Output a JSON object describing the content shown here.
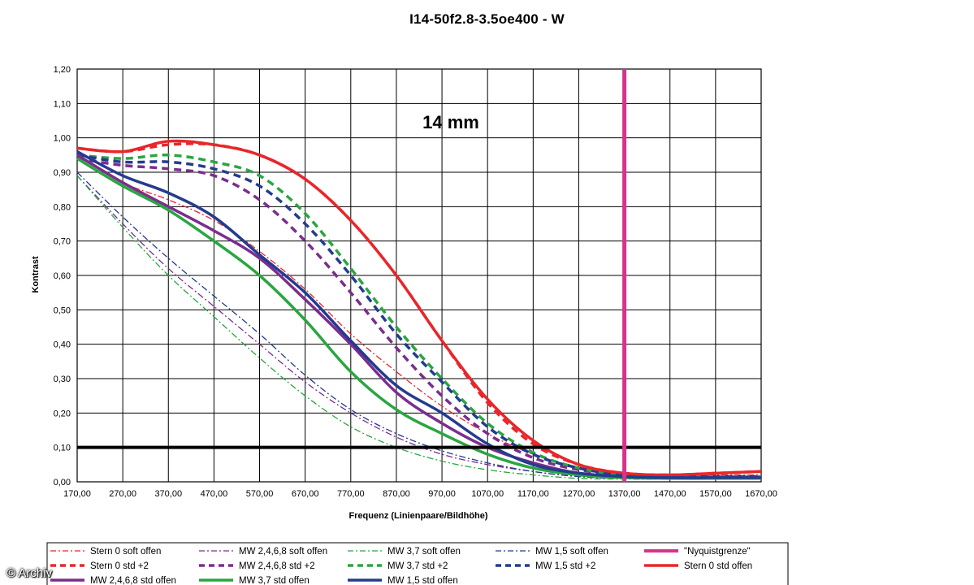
{
  "watermark": "© Archiv",
  "chart_data": {
    "type": "line",
    "title": "I14-50f2.8-3.5oe400 - W",
    "annotation": "14 mm",
    "xlabel": "Frequenz (Linienpaare/Bildhöhe)",
    "ylabel": "Kontrast",
    "xlim": [
      170,
      1670
    ],
    "ylim": [
      0,
      1.2
    ],
    "x_ticks": [
      "170,00",
      "270,00",
      "370,00",
      "470,00",
      "570,00",
      "670,00",
      "770,00",
      "870,00",
      "970,00",
      "1070,00",
      "1170,00",
      "1270,00",
      "1370,00",
      "1470,00",
      "1570,00",
      "1670,00"
    ],
    "y_ticks": [
      "0,00",
      "0,10",
      "0,20",
      "0,30",
      "0,40",
      "0,50",
      "0,60",
      "0,70",
      "0,80",
      "0,90",
      "1,00",
      "1,10",
      "1,20"
    ],
    "grid": true,
    "legend_position": "bottom",
    "reference_lines": {
      "horizontal": {
        "y": 0.1,
        "color": "#000000"
      },
      "nyquist": {
        "x": 1370,
        "color": "#d6338e",
        "name": "\"Nyquistgrenze\""
      }
    },
    "series": [
      {
        "name": "Stern 0 soft offen",
        "color": "#e8262b",
        "style": "dashdot",
        "width": 1.3,
        "x": [
          170,
          270,
          370,
          470,
          570,
          670,
          770,
          870,
          970,
          1070,
          1170,
          1270,
          1370,
          1470,
          1570,
          1670
        ],
        "y": [
          0.95,
          0.87,
          0.82,
          0.76,
          0.67,
          0.56,
          0.43,
          0.32,
          0.22,
          0.14,
          0.08,
          0.04,
          0.025,
          0.02,
          0.02,
          0.02
        ]
      },
      {
        "name": "MW 2,4,6,8 soft offen",
        "color": "#7b2d8e",
        "style": "dashdot",
        "width": 1.3,
        "x": [
          170,
          270,
          370,
          470,
          570,
          670,
          770,
          870,
          970,
          1070,
          1170,
          1270,
          1370,
          1470,
          1570,
          1670
        ],
        "y": [
          0.89,
          0.75,
          0.62,
          0.51,
          0.4,
          0.29,
          0.2,
          0.13,
          0.08,
          0.05,
          0.03,
          0.015,
          0.01,
          0.01,
          0.01,
          0.01
        ]
      },
      {
        "name": "MW 3,7 soft offen",
        "color": "#2aa640",
        "style": "dashdot",
        "width": 1.3,
        "x": [
          170,
          270,
          370,
          470,
          570,
          670,
          770,
          870,
          970,
          1070,
          1170,
          1270,
          1370,
          1470,
          1570,
          1670
        ],
        "y": [
          0.89,
          0.74,
          0.6,
          0.48,
          0.36,
          0.25,
          0.16,
          0.1,
          0.06,
          0.035,
          0.02,
          0.01,
          0.008,
          0.008,
          0.008,
          0.008
        ]
      },
      {
        "name": "MW 1,5 soft offen",
        "color": "#243b8f",
        "style": "dashdot",
        "width": 1.3,
        "x": [
          170,
          270,
          370,
          470,
          570,
          670,
          770,
          870,
          970,
          1070,
          1170,
          1270,
          1370,
          1470,
          1570,
          1670
        ],
        "y": [
          0.9,
          0.77,
          0.65,
          0.54,
          0.43,
          0.31,
          0.21,
          0.14,
          0.09,
          0.055,
          0.03,
          0.015,
          0.01,
          0.01,
          0.01,
          0.01
        ]
      },
      {
        "name": "\"Nyquistgrenze\"",
        "color": "#d6338e",
        "style": "solid",
        "width": 4,
        "legend_only": true
      },
      {
        "name": "Stern 0 std +2",
        "color": "#e8262b",
        "style": "dash",
        "width": 3.5,
        "x": [
          170,
          270,
          370,
          470,
          570,
          670,
          770,
          870,
          970,
          1070,
          1170,
          1270,
          1370,
          1470,
          1570,
          1670
        ],
        "y": [
          0.97,
          0.96,
          0.98,
          0.98,
          0.95,
          0.88,
          0.76,
          0.6,
          0.41,
          0.23,
          0.11,
          0.05,
          0.025,
          0.02,
          0.025,
          0.03
        ]
      },
      {
        "name": "MW 2,4,6,8 std +2",
        "color": "#7b2d8e",
        "style": "dash",
        "width": 3.5,
        "x": [
          170,
          270,
          370,
          470,
          570,
          670,
          770,
          870,
          970,
          1070,
          1170,
          1270,
          1370,
          1470,
          1570,
          1670
        ],
        "y": [
          0.94,
          0.92,
          0.91,
          0.89,
          0.82,
          0.7,
          0.55,
          0.39,
          0.25,
          0.14,
          0.07,
          0.035,
          0.02,
          0.015,
          0.015,
          0.015
        ]
      },
      {
        "name": "MW 3,7 std +2",
        "color": "#2aa640",
        "style": "dash",
        "width": 3.5,
        "x": [
          170,
          270,
          370,
          470,
          570,
          670,
          770,
          870,
          970,
          1070,
          1170,
          1270,
          1370,
          1470,
          1570,
          1670
        ],
        "y": [
          0.95,
          0.94,
          0.95,
          0.93,
          0.89,
          0.78,
          0.62,
          0.45,
          0.3,
          0.17,
          0.085,
          0.04,
          0.02,
          0.015,
          0.015,
          0.015
        ]
      },
      {
        "name": "MW 1,5 std +2",
        "color": "#243b8f",
        "style": "dash",
        "width": 3.5,
        "x": [
          170,
          270,
          370,
          470,
          570,
          670,
          770,
          870,
          970,
          1070,
          1170,
          1270,
          1370,
          1470,
          1570,
          1670
        ],
        "y": [
          0.95,
          0.93,
          0.93,
          0.91,
          0.86,
          0.75,
          0.6,
          0.43,
          0.29,
          0.16,
          0.08,
          0.04,
          0.02,
          0.015,
          0.015,
          0.015
        ]
      },
      {
        "name": "Stern 0 std offen",
        "color": "#e8262b",
        "style": "solid",
        "width": 3.5,
        "x": [
          170,
          270,
          370,
          470,
          570,
          670,
          770,
          870,
          970,
          1070,
          1170,
          1270,
          1370,
          1470,
          1570,
          1670
        ],
        "y": [
          0.97,
          0.96,
          0.99,
          0.98,
          0.95,
          0.88,
          0.76,
          0.6,
          0.41,
          0.24,
          0.12,
          0.05,
          0.025,
          0.02,
          0.025,
          0.03
        ]
      },
      {
        "name": "MW 2,4,6,8 std offen",
        "color": "#7b2d8e",
        "style": "solid",
        "width": 3.5,
        "x": [
          170,
          270,
          370,
          470,
          570,
          670,
          770,
          870,
          970,
          1070,
          1170,
          1270,
          1370,
          1470,
          1570,
          1670
        ],
        "y": [
          0.95,
          0.87,
          0.8,
          0.73,
          0.65,
          0.53,
          0.4,
          0.26,
          0.17,
          0.1,
          0.055,
          0.025,
          0.015,
          0.012,
          0.012,
          0.012
        ]
      },
      {
        "name": "MW 3,7 std offen",
        "color": "#2aa640",
        "style": "solid",
        "width": 3.5,
        "x": [
          170,
          270,
          370,
          470,
          570,
          670,
          770,
          870,
          970,
          1070,
          1170,
          1270,
          1370,
          1470,
          1570,
          1670
        ],
        "y": [
          0.94,
          0.86,
          0.79,
          0.7,
          0.6,
          0.47,
          0.32,
          0.21,
          0.14,
          0.08,
          0.04,
          0.02,
          0.012,
          0.01,
          0.01,
          0.01
        ]
      },
      {
        "name": "MW 1,5 std offen",
        "color": "#243b8f",
        "style": "solid",
        "width": 3.5,
        "x": [
          170,
          270,
          370,
          470,
          570,
          670,
          770,
          870,
          970,
          1070,
          1170,
          1270,
          1370,
          1470,
          1570,
          1670
        ],
        "y": [
          0.96,
          0.89,
          0.84,
          0.77,
          0.66,
          0.55,
          0.41,
          0.28,
          0.2,
          0.11,
          0.05,
          0.025,
          0.015,
          0.012,
          0.012,
          0.012
        ]
      }
    ]
  }
}
